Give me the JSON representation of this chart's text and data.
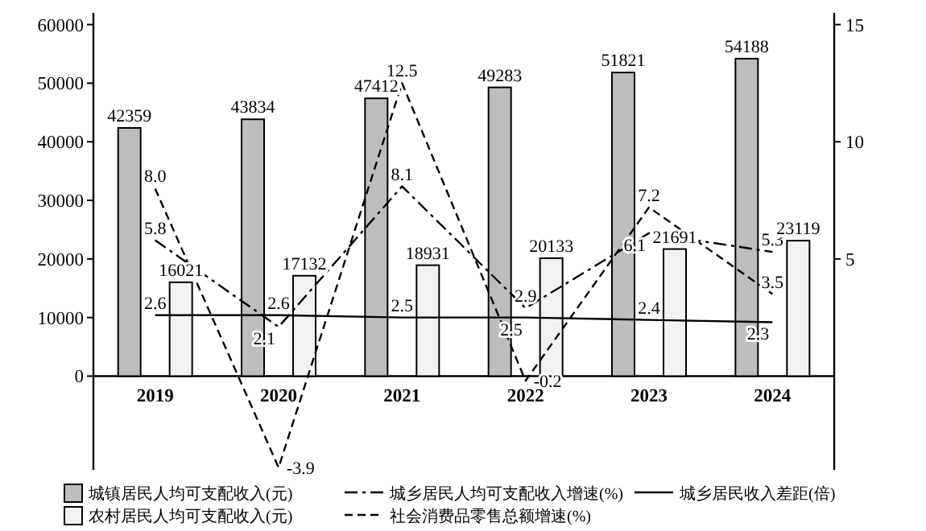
{
  "chart_data": {
    "type": "bar",
    "categories": [
      "2019",
      "2020",
      "2021",
      "2022",
      "2023",
      "2024"
    ],
    "series": [
      {
        "name": "城镇居民人均可支配收入(元)",
        "color": "#bdbdbd",
        "values": [
          42359,
          43834,
          47412,
          49283,
          51821,
          54188
        ],
        "value_labels": [
          "42359",
          "43834",
          "47412",
          "49283",
          "51821",
          "54188"
        ]
      },
      {
        "name": "城乡居民人均可支配收入增速(%)",
        "type": "line",
        "axis": "y2",
        "color": "#000000",
        "line_style": "dashdot",
        "values": [
          5.8,
          2.1,
          8.1,
          2.9,
          6.1,
          5.3
        ],
        "value_labels": [
          "5.8",
          "2.1",
          "8.1",
          "2.9",
          "6.1",
          "5.3"
        ]
      },
      {
        "name": "城乡居民收入差距(倍)",
        "type": "line",
        "axis": "y2",
        "color": "#000000",
        "line_style": "solid",
        "values": [
          2.6,
          2.6,
          2.5,
          2.5,
          2.4,
          2.3
        ],
        "value_labels": [
          "2.6",
          "2.6",
          "2.5",
          "2.5",
          "2.4",
          "2.3"
        ]
      },
      {
        "name": "农村居民人均可支配收入(元)",
        "color": "#f2f2f2",
        "values": [
          16021,
          17132,
          18931,
          20133,
          21691,
          23119
        ],
        "value_labels": [
          "16021",
          "17132",
          "18931",
          "20133",
          "21691",
          "23119"
        ]
      },
      {
        "name": "社会消费品零售总额增速(%)",
        "type": "line",
        "axis": "y2",
        "color": "#000000",
        "line_style": "dashed",
        "values": [
          8.0,
          -3.9,
          12.5,
          -0.2,
          7.2,
          3.5
        ],
        "value_labels": [
          "8.0",
          "-3.9",
          "12.5",
          "-0.2",
          "7.2",
          "3.5"
        ]
      }
    ],
    "ylim": [
      -16000,
      62000
    ],
    "yticks": [
      0,
      10000,
      20000,
      30000,
      40000,
      50000,
      60000
    ],
    "y2lim": [
      -4,
      15.5
    ],
    "y2ticks": [
      5,
      10,
      15
    ],
    "legend": "bottom",
    "grid": false
  }
}
